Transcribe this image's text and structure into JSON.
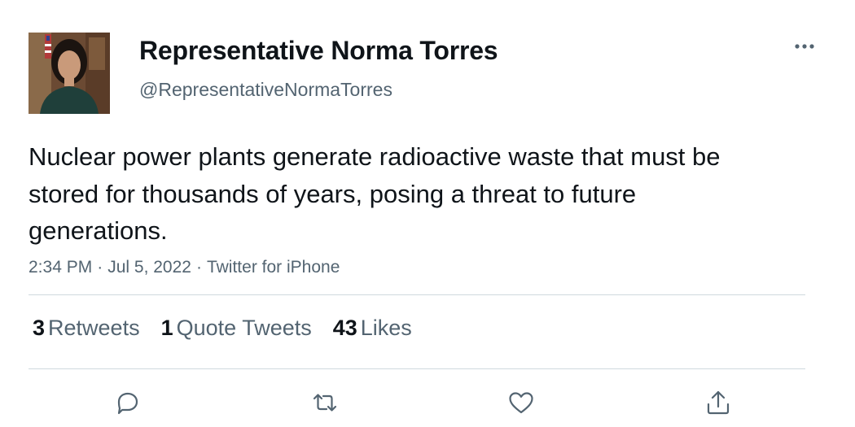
{
  "author": {
    "display_name": "Representative Norma Torres",
    "handle": "@RepresentativeNormaTorres",
    "avatar_icon": "profile-photo"
  },
  "tweet": {
    "text": "Nuclear power plants generate radioactive waste that must be stored for thousands of years, posing a threat to future generations.",
    "time": "2:34 PM",
    "date": "Jul 5, 2022",
    "source": "Twitter for iPhone",
    "separator": "·"
  },
  "stats": {
    "retweets": {
      "count": "3",
      "label": "Retweets"
    },
    "quote_tweets": {
      "count": "1",
      "label": "Quote Tweets"
    },
    "likes": {
      "count": "43",
      "label": "Likes"
    }
  },
  "actions": [
    {
      "name": "reply",
      "icon": "comment-icon"
    },
    {
      "name": "retweet",
      "icon": "retweet-icon"
    },
    {
      "name": "like",
      "icon": "heart-icon"
    },
    {
      "name": "share",
      "icon": "share-icon"
    }
  ],
  "colors": {
    "text_primary": "#0f1419",
    "text_secondary": "#536471",
    "divider": "#cfd9de"
  }
}
